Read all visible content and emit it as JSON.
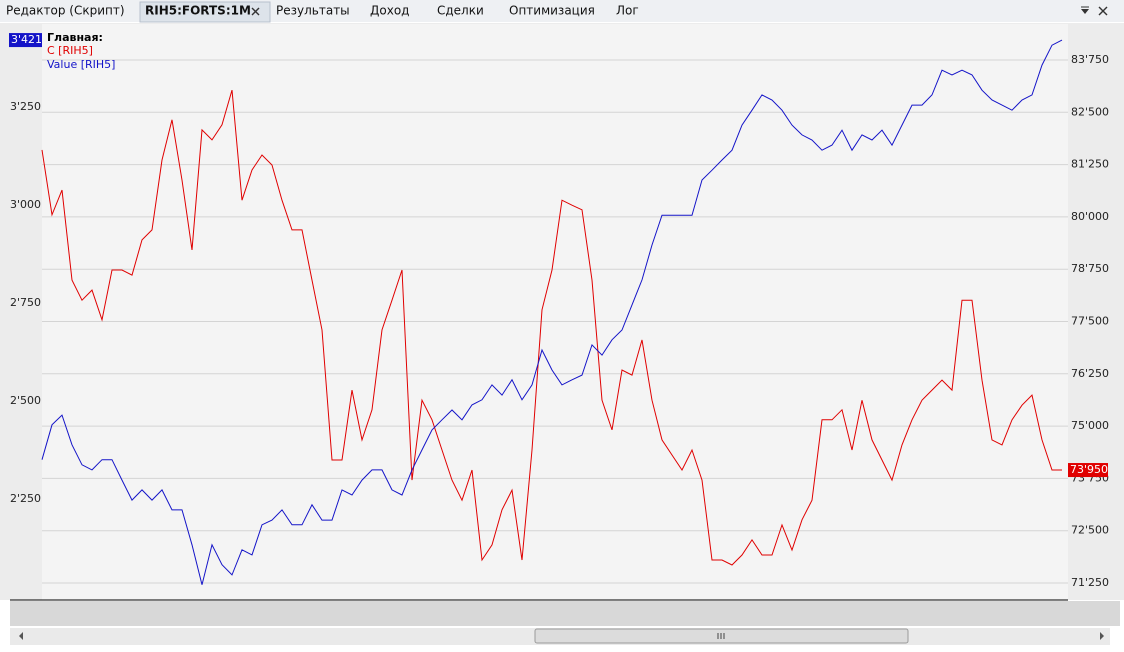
{
  "tabs": [
    "Редактор (Скрипт)",
    "RIH5:FORTS:1M",
    "Результаты",
    "Доход",
    "Сделки",
    "Оптимизация",
    "Лог"
  ],
  "chart_data": {
    "type": "line",
    "legend_title": "Главная:",
    "grid": "y2",
    "ylim": [
      1992,
      3462
    ],
    "yticks": [
      {
        "value": 2250,
        "label": "2'250"
      },
      {
        "value": 2500,
        "label": "2'500"
      },
      {
        "value": 2750,
        "label": "2'750"
      },
      {
        "value": 3000,
        "label": "3'000"
      },
      {
        "value": 3250,
        "label": "3'250"
      }
    ],
    "y2lim": [
      70844,
      84610
    ],
    "y2ticks": [
      {
        "value": 71250,
        "label": "71'250"
      },
      {
        "value": 72500,
        "label": "72'500"
      },
      {
        "value": 73750,
        "label": "73'750"
      },
      {
        "value": 75000,
        "label": "75'000"
      },
      {
        "value": 76250,
        "label": "76'250"
      },
      {
        "value": 77500,
        "label": "77'500"
      },
      {
        "value": 78750,
        "label": "78'750"
      },
      {
        "value": 80000,
        "label": "80'000"
      },
      {
        "value": 81250,
        "label": "81'250"
      },
      {
        "value": 82500,
        "label": "82'500"
      },
      {
        "value": 83750,
        "label": "83'750"
      }
    ],
    "series": [
      {
        "name": "C [RIH5]",
        "color": "#e00000",
        "axis": "y2",
        "last_value_label": "73'950",
        "values": [
          81600,
          80050,
          80640,
          78490,
          78010,
          78250,
          77540,
          78730,
          78730,
          78610,
          79450,
          79690,
          81360,
          82320,
          80880,
          79210,
          82080,
          81840,
          82200,
          83030,
          80400,
          81120,
          81480,
          81240,
          80400,
          79690,
          79690,
          78490,
          77300,
          74190,
          74190,
          75860,
          74670,
          75390,
          77300,
          78010,
          78730,
          73710,
          75620,
          75150,
          74430,
          73710,
          73230,
          73950,
          71800,
          72160,
          73000,
          73470,
          71800,
          74430,
          77780,
          78730,
          80400,
          80280,
          80170,
          78490,
          75620,
          74910,
          76340,
          76220,
          77060,
          75620,
          74670,
          74310,
          73950,
          74430,
          73710,
          71800,
          71800,
          71680,
          71920,
          72280,
          71920,
          71920,
          72640,
          72040,
          72760,
          73230,
          75150,
          75150,
          75390,
          74430,
          75620,
          74670,
          74190,
          73710,
          74550,
          75150,
          75620,
          75860,
          76100,
          75860,
          78010,
          78010,
          76100,
          74670,
          74550,
          75150,
          75500,
          75740,
          74670,
          73950,
          73950
        ]
      },
      {
        "name": "Value [RIH5]",
        "color": "#1414c8",
        "axis": "y",
        "last_value_label": "3'421",
        "values": [
          2350,
          2439,
          2464,
          2388,
          2337,
          2324,
          2350,
          2350,
          2298,
          2247,
          2273,
          2247,
          2273,
          2222,
          2222,
          2133,
          2031,
          2133,
          2082,
          2056,
          2120,
          2107,
          2184,
          2196,
          2222,
          2184,
          2184,
          2235,
          2196,
          2196,
          2273,
          2260,
          2298,
          2324,
          2324,
          2273,
          2260,
          2324,
          2375,
          2426,
          2452,
          2477,
          2452,
          2490,
          2503,
          2541,
          2515,
          2554,
          2503,
          2541,
          2630,
          2579,
          2541,
          2554,
          2566,
          2643,
          2617,
          2656,
          2681,
          2745,
          2809,
          2898,
          2974,
          2974,
          2974,
          2974,
          3064,
          3089,
          3115,
          3140,
          3204,
          3242,
          3281,
          3268,
          3242,
          3204,
          3179,
          3166,
          3140,
          3153,
          3191,
          3140,
          3179,
          3166,
          3191,
          3153,
          3204,
          3255,
          3255,
          3281,
          3344,
          3332,
          3344,
          3332,
          3293,
          3268,
          3255,
          3242,
          3268,
          3281,
          3357,
          3408,
          3421
        ]
      }
    ]
  }
}
